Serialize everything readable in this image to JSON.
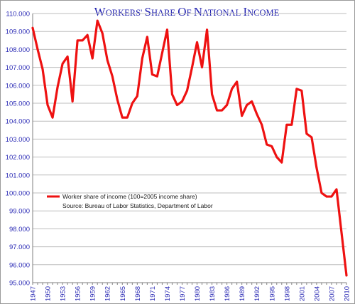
{
  "chart_data": {
    "type": "line",
    "title": "Workers' Share of National Income",
    "xlabel": "",
    "ylabel": "",
    "ylim": [
      95.0,
      110.0
    ],
    "y_ticks": [
      "95.000",
      "96.000",
      "97.000",
      "98.000",
      "99.000",
      "100.000",
      "101.000",
      "102.000",
      "103.000",
      "104.000",
      "105.000",
      "106.000",
      "107.000",
      "108.000",
      "109.000",
      "110.000"
    ],
    "x_tick_labels": [
      "1947",
      "1950",
      "1953",
      "1956",
      "1959",
      "1962",
      "1965",
      "1968",
      "1971",
      "1974",
      "1977",
      "1980",
      "1983",
      "1986",
      "1989",
      "1992",
      "1995",
      "1998",
      "2001",
      "2004",
      "2007",
      "2010"
    ],
    "grid": true,
    "legend_position": "left",
    "colors": {
      "series": "#ee1111",
      "text": "#2b2bb5",
      "grid": "#bdbdbd"
    },
    "x": [
      1947,
      1948,
      1949,
      1950,
      1951,
      1952,
      1953,
      1954,
      1955,
      1956,
      1957,
      1958,
      1959,
      1960,
      1961,
      1962,
      1963,
      1964,
      1965,
      1966,
      1967,
      1968,
      1969,
      1970,
      1971,
      1972,
      1973,
      1974,
      1975,
      1976,
      1977,
      1978,
      1979,
      1980,
      1981,
      1982,
      1983,
      1984,
      1985,
      1986,
      1987,
      1988,
      1989,
      1990,
      1991,
      1992,
      1993,
      1994,
      1995,
      1996,
      1997,
      1998,
      1999,
      2000,
      2001,
      2002,
      2003,
      2004,
      2005,
      2006,
      2007,
      2008,
      2009,
      2010
    ],
    "series": [
      {
        "name": "Worker share of income (100=2005 income share)",
        "values": [
          109.2,
          108.0,
          106.9,
          104.9,
          104.2,
          105.9,
          107.2,
          107.6,
          105.1,
          108.5,
          108.5,
          108.8,
          107.5,
          109.6,
          108.9,
          107.4,
          106.5,
          105.2,
          104.2,
          104.2,
          105.0,
          105.4,
          107.5,
          108.7,
          106.6,
          106.5,
          107.8,
          109.1,
          105.5,
          104.9,
          105.1,
          105.7,
          107.0,
          108.4,
          107.0,
          109.1,
          105.5,
          104.6,
          104.6,
          104.9,
          105.8,
          106.2,
          104.3,
          104.9,
          105.1,
          104.4,
          103.8,
          102.7,
          102.6,
          102.0,
          101.7,
          103.8,
          103.8,
          105.8,
          105.7,
          103.3,
          103.1,
          101.4,
          100.0,
          99.8,
          99.8,
          100.2,
          97.8,
          95.4
        ]
      }
    ],
    "legend_lines": [
      "Worker share of income (100=2005 income share)",
      "Source: Bureau of Labor Statistics, Department of Labor"
    ]
  }
}
